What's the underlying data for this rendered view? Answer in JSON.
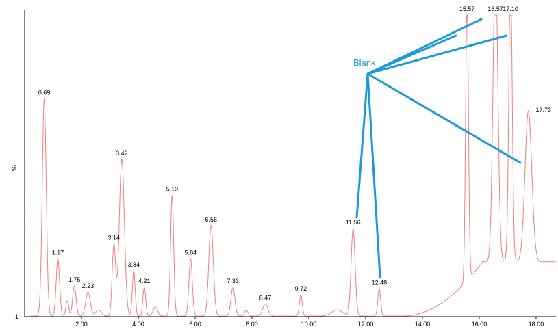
{
  "chart_data": {
    "type": "line",
    "ylabel": "%",
    "xlim": [
      0.0,
      18.7
    ],
    "x_ticks": [
      2.0,
      4.0,
      6.0,
      8.0,
      10.0,
      12.0,
      14.0,
      16.0,
      18.0
    ],
    "x_tick_labels": [
      "2.00",
      "4.00",
      "6.00",
      "8.00",
      "10.00",
      "12.00",
      "14.00",
      "16.00",
      "18.00"
    ],
    "y_bottom_label": "1",
    "series_color": "#f08080",
    "annotation_color": "#1a9ad6",
    "peaks": [
      {
        "rt": 0.69,
        "label": "0.69",
        "h": 0.72
      },
      {
        "rt": 1.17,
        "label": "1.17",
        "h": 0.19
      },
      {
        "rt": 1.75,
        "label": "1.75",
        "h": 0.1
      },
      {
        "rt": 2.23,
        "label": "2.23",
        "h": 0.08
      },
      {
        "rt": 3.14,
        "label": "3.14",
        "h": 0.235
      },
      {
        "rt": 3.42,
        "label": "3.42",
        "h": 0.52
      },
      {
        "rt": 3.84,
        "label": "3.84",
        "h": 0.15
      },
      {
        "rt": 4.21,
        "label": "4.21",
        "h": 0.095
      },
      {
        "rt": 5.19,
        "label": "5.19",
        "h": 0.4
      },
      {
        "rt": 5.84,
        "label": "5.84",
        "h": 0.19
      },
      {
        "rt": 6.56,
        "label": "6.56",
        "h": 0.3
      },
      {
        "rt": 7.33,
        "label": "7.33",
        "h": 0.095
      },
      {
        "rt": 8.47,
        "label": "8.47",
        "h": 0.04
      },
      {
        "rt": 9.72,
        "label": "9.72",
        "h": 0.07
      },
      {
        "rt": 11.56,
        "label": "11.56",
        "h": 0.29
      },
      {
        "rt": 12.48,
        "label": "12.48",
        "h": 0.09
      },
      {
        "rt": 15.57,
        "label": "15.57",
        "h": 0.93
      },
      {
        "rt": 16.57,
        "label": "16.57",
        "h": 0.99
      },
      {
        "rt": 17.1,
        "label": "17.10",
        "h": 0.95
      },
      {
        "rt": 17.73,
        "label": "17.73",
        "h": 0.5
      }
    ],
    "annotations": [
      {
        "text": "Blank",
        "targets": [
          "11.56",
          "12.48",
          "15.57",
          "16.57",
          "17.10",
          "17.73"
        ]
      }
    ]
  }
}
